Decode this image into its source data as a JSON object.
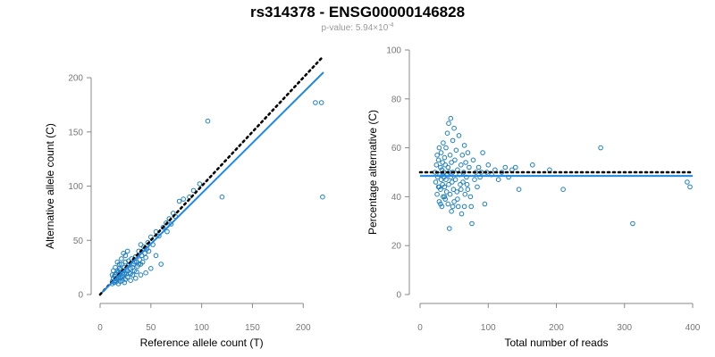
{
  "page": {
    "title": "rs314378 - ENSG00000146828",
    "subtitle_prefix": "p-value: 5.94×10",
    "subtitle_exponent": "-4"
  },
  "colors": {
    "points": "#1f7fbf",
    "fit_line": "#1e88e5",
    "reference_line": "#000000",
    "axis": "#888888",
    "tick_text": "#777777"
  },
  "chart_data": [
    {
      "type": "scatter",
      "title": "",
      "xlabel": "Reference allele count (T)",
      "ylabel": "Alternative allele count (C)",
      "xlim": [
        0,
        220
      ],
      "ylim": [
        0,
        205
      ],
      "xticks": [
        0,
        50,
        100,
        150,
        200
      ],
      "yticks": [
        0,
        50,
        100,
        150,
        200
      ],
      "reference_line": {
        "style": "dotted",
        "from": [
          0,
          0
        ],
        "to": [
          220,
          220
        ]
      },
      "fit_line": {
        "style": "solid",
        "from": [
          2,
          2
        ],
        "to": [
          220,
          205
        ]
      },
      "points": [
        [
          12,
          10
        ],
        [
          12,
          12
        ],
        [
          13,
          15
        ],
        [
          14,
          11
        ],
        [
          15,
          13
        ],
        [
          15,
          18
        ],
        [
          16,
          12
        ],
        [
          16,
          20
        ],
        [
          17,
          14
        ],
        [
          17,
          22
        ],
        [
          18,
          10
        ],
        [
          18,
          16
        ],
        [
          19,
          19
        ],
        [
          19,
          24
        ],
        [
          20,
          12
        ],
        [
          20,
          15
        ],
        [
          21,
          17
        ],
        [
          21,
          28
        ],
        [
          22,
          13
        ],
        [
          22,
          20
        ],
        [
          23,
          18
        ],
        [
          24,
          11
        ],
        [
          24,
          25
        ],
        [
          25,
          14
        ],
        [
          25,
          30
        ],
        [
          26,
          19
        ],
        [
          27,
          22
        ],
        [
          27,
          16
        ],
        [
          28,
          27
        ],
        [
          29,
          20
        ],
        [
          30,
          13
        ],
        [
          30,
          24
        ],
        [
          31,
          33
        ],
        [
          32,
          18
        ],
        [
          33,
          28
        ],
        [
          34,
          22
        ],
        [
          35,
          35
        ],
        [
          36,
          30
        ],
        [
          37,
          26
        ],
        [
          38,
          40
        ],
        [
          39,
          32
        ],
        [
          40,
          28
        ],
        [
          41,
          36
        ],
        [
          42,
          30
        ],
        [
          43,
          44
        ],
        [
          44,
          38
        ],
        [
          45,
          34
        ],
        [
          46,
          42
        ],
        [
          47,
          48
        ],
        [
          48,
          40
        ],
        [
          50,
          53
        ],
        [
          52,
          46
        ],
        [
          55,
          58
        ],
        [
          58,
          54
        ],
        [
          62,
          62
        ],
        [
          65,
          66
        ],
        [
          66,
          58
        ],
        [
          68,
          70
        ],
        [
          70,
          65
        ],
        [
          72,
          75
        ],
        [
          74,
          72
        ],
        [
          78,
          86
        ],
        [
          82,
          88
        ],
        [
          88,
          90
        ],
        [
          92,
          96
        ],
        [
          98,
          102
        ],
        [
          106,
          160
        ],
        [
          120,
          90
        ],
        [
          212,
          177
        ],
        [
          218,
          177
        ],
        [
          219,
          90
        ],
        [
          14,
          17
        ],
        [
          16,
          15
        ],
        [
          18,
          21
        ],
        [
          20,
          23
        ],
        [
          22,
          16
        ],
        [
          24,
          19
        ],
        [
          26,
          24
        ],
        [
          28,
          31
        ],
        [
          30,
          19
        ],
        [
          32,
          25
        ],
        [
          34,
          30
        ],
        [
          36,
          21
        ],
        [
          38,
          28
        ],
        [
          40,
          46
        ],
        [
          55,
          36
        ],
        [
          60,
          28
        ],
        [
          12,
          18
        ],
        [
          13,
          22
        ],
        [
          15,
          25
        ],
        [
          17,
          30
        ],
        [
          19,
          28
        ],
        [
          21,
          33
        ],
        [
          23,
          38
        ],
        [
          25,
          36
        ],
        [
          27,
          40
        ],
        [
          45,
          20
        ],
        [
          50,
          24
        ],
        [
          35,
          15
        ],
        [
          40,
          18
        ]
      ]
    },
    {
      "type": "scatter",
      "title": "",
      "xlabel": "Total number of reads",
      "ylabel": "Percentage alternative (C)",
      "xlim": [
        0,
        400
      ],
      "ylim": [
        0,
        100
      ],
      "xticks": [
        0,
        100,
        200,
        300,
        400
      ],
      "yticks": [
        0,
        20,
        40,
        60,
        80,
        100
      ],
      "reference_line": {
        "style": "dotted",
        "y": 50
      },
      "fit_line": {
        "style": "solid",
        "y": 48.5
      },
      "points": [
        [
          22,
          50
        ],
        [
          23,
          46
        ],
        [
          24,
          53
        ],
        [
          25,
          41
        ],
        [
          25,
          57
        ],
        [
          26,
          48
        ],
        [
          27,
          44
        ],
        [
          27,
          55
        ],
        [
          28,
          38
        ],
        [
          28,
          60
        ],
        [
          29,
          49
        ],
        [
          30,
          52
        ],
        [
          30,
          43
        ],
        [
          31,
          47
        ],
        [
          31,
          58
        ],
        [
          32,
          36
        ],
        [
          32,
          51
        ],
        [
          33,
          45
        ],
        [
          33,
          54
        ],
        [
          34,
          40
        ],
        [
          34,
          62
        ],
        [
          35,
          48
        ],
        [
          35,
          50
        ],
        [
          36,
          44
        ],
        [
          36,
          56
        ],
        [
          37,
          39
        ],
        [
          37,
          53
        ],
        [
          38,
          47
        ],
        [
          38,
          60
        ],
        [
          39,
          42
        ],
        [
          40,
          66
        ],
        [
          40,
          49
        ],
        [
          41,
          37
        ],
        [
          41,
          52
        ],
        [
          42,
          45
        ],
        [
          42,
          70
        ],
        [
          43,
          27
        ],
        [
          43,
          50
        ],
        [
          44,
          41
        ],
        [
          44,
          57
        ],
        [
          45,
          72
        ],
        [
          45,
          48
        ],
        [
          46,
          34
        ],
        [
          46,
          54
        ],
        [
          47,
          46
        ],
        [
          48,
          63
        ],
        [
          48,
          50
        ],
        [
          49,
          43
        ],
        [
          50,
          68
        ],
        [
          50,
          38
        ],
        [
          51,
          55
        ],
        [
          52,
          47
        ],
        [
          53,
          59
        ],
        [
          54,
          42
        ],
        [
          55,
          51
        ],
        [
          56,
          36
        ],
        [
          57,
          65
        ],
        [
          58,
          49
        ],
        [
          59,
          45
        ],
        [
          60,
          53
        ],
        [
          61,
          33
        ],
        [
          62,
          57
        ],
        [
          63,
          46
        ],
        [
          64,
          50
        ],
        [
          65,
          61
        ],
        [
          66,
          41
        ],
        [
          67,
          54
        ],
        [
          68,
          48
        ],
        [
          69,
          45
        ],
        [
          70,
          58
        ],
        [
          72,
          52
        ],
        [
          74,
          40
        ],
        [
          76,
          29
        ],
        [
          78,
          55
        ],
        [
          80,
          47
        ],
        [
          82,
          50
        ],
        [
          84,
          44
        ],
        [
          86,
          52
        ],
        [
          88,
          48
        ],
        [
          90,
          50
        ],
        [
          92,
          58
        ],
        [
          95,
          37
        ],
        [
          98,
          50
        ],
        [
          100,
          53
        ],
        [
          105,
          49
        ],
        [
          110,
          51
        ],
        [
          115,
          47
        ],
        [
          120,
          50
        ],
        [
          125,
          52
        ],
        [
          130,
          48
        ],
        [
          135,
          51
        ],
        [
          140,
          52
        ],
        [
          145,
          43
        ],
        [
          165,
          53
        ],
        [
          190,
          51
        ],
        [
          210,
          43
        ],
        [
          265,
          60
        ],
        [
          312,
          29
        ],
        [
          392,
          46
        ],
        [
          396,
          44
        ],
        [
          60,
          43
        ],
        [
          55,
          39
        ],
        [
          48,
          36
        ],
        [
          65,
          36
        ],
        [
          70,
          43
        ],
        [
          75,
          36
        ],
        [
          28,
          44
        ],
        [
          30,
          37
        ],
        [
          33,
          49
        ],
        [
          36,
          40
        ]
      ]
    }
  ]
}
